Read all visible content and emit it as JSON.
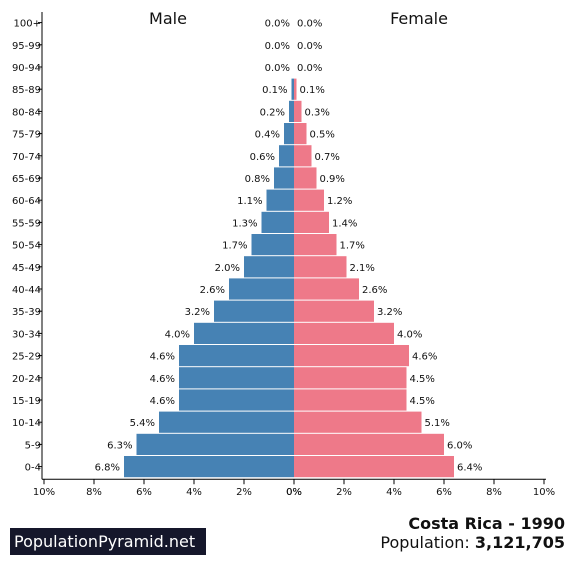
{
  "chart_data": {
    "type": "bar",
    "title": "Costa Rica - 1990",
    "left_label": "Male",
    "right_label": "Female",
    "categories": [
      "100+",
      "95-99",
      "90-94",
      "85-89",
      "80-84",
      "75-79",
      "70-74",
      "65-69",
      "60-64",
      "55-59",
      "50-54",
      "45-49",
      "40-44",
      "35-39",
      "30-34",
      "25-29",
      "20-24",
      "15-19",
      "10-14",
      "5-9",
      "0-4"
    ],
    "series": [
      {
        "name": "Male",
        "color": "#4682b4",
        "values": [
          0.0,
          0.0,
          0.0,
          0.1,
          0.2,
          0.4,
          0.6,
          0.8,
          1.1,
          1.3,
          1.7,
          2.0,
          2.6,
          3.2,
          4.0,
          4.6,
          4.6,
          4.6,
          5.4,
          6.3,
          6.8
        ],
        "labels": [
          "0.0%",
          "0.0%",
          "0.0%",
          "0.1%",
          "0.2%",
          "0.4%",
          "0.6%",
          "0.8%",
          "1.1%",
          "1.3%",
          "1.7%",
          "2.0%",
          "2.6%",
          "3.2%",
          "4.0%",
          "4.6%",
          "4.6%",
          "4.6%",
          "5.4%",
          "6.3%",
          "6.8%"
        ]
      },
      {
        "name": "Female",
        "color": "#ee7989",
        "values": [
          0.0,
          0.0,
          0.0,
          0.1,
          0.3,
          0.5,
          0.7,
          0.9,
          1.2,
          1.4,
          1.7,
          2.1,
          2.6,
          3.2,
          4.0,
          4.6,
          4.5,
          4.5,
          5.1,
          6.0,
          6.4
        ],
        "labels": [
          "0.0%",
          "0.0%",
          "0.0%",
          "0.1%",
          "0.3%",
          "0.5%",
          "0.7%",
          "0.9%",
          "1.2%",
          "1.4%",
          "1.7%",
          "2.1%",
          "2.6%",
          "3.2%",
          "4.0%",
          "4.6%",
          "4.5%",
          "4.5%",
          "5.1%",
          "6.0%",
          "6.4%"
        ]
      }
    ],
    "xlim": [
      0,
      10
    ],
    "xticks": [
      "10%",
      "8%",
      "6%",
      "4%",
      "2%",
      "0%",
      "0%",
      "2%",
      "4%",
      "6%",
      "8%",
      "10%"
    ]
  },
  "footer": {
    "brand": "PopulationPyramid.net",
    "country_year": "Costa Rica - 1990",
    "population_label": "Population: ",
    "population_value": "3,121,705"
  }
}
